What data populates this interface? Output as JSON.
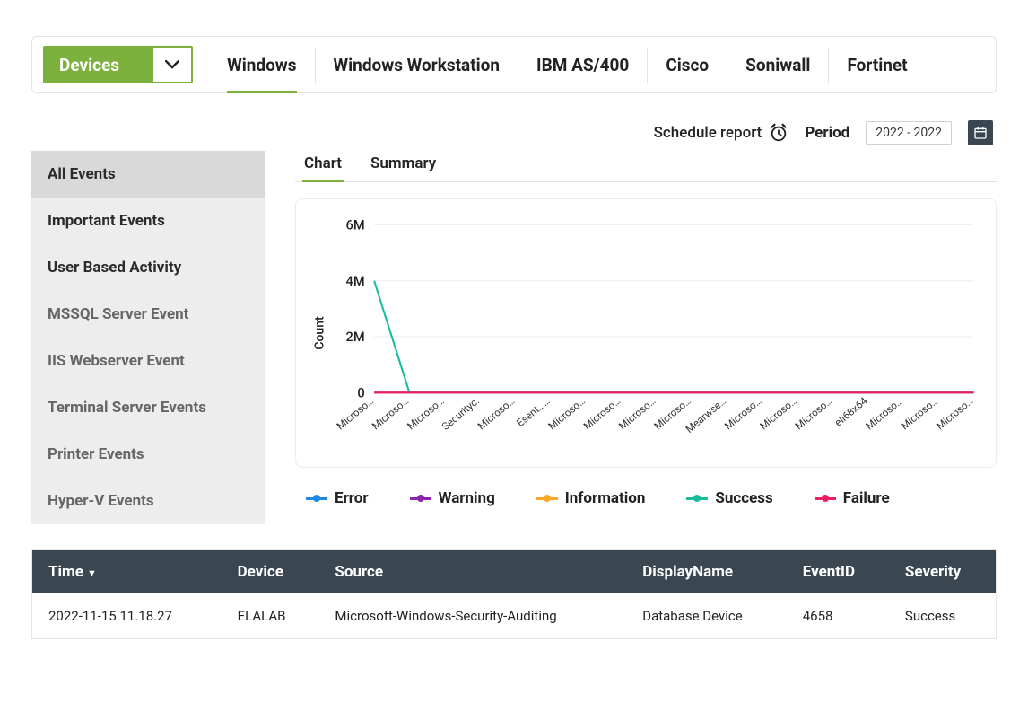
{
  "topnav": {
    "dropdown_label": "Devices",
    "items": [
      "Windows",
      "Windows Workstation",
      "IBM AS/400",
      "Cisco",
      "Soniwall",
      "Fortinet"
    ],
    "active_index": 0
  },
  "controls": {
    "schedule_label": "Schedule report",
    "period_label": "Period",
    "period_value": "2022 - 2022"
  },
  "sidebar": {
    "items": [
      {
        "label": "All Events",
        "active": true,
        "sub": false
      },
      {
        "label": "Important Events",
        "active": false,
        "sub": false
      },
      {
        "label": "User Based Activity",
        "active": false,
        "sub": false
      },
      {
        "label": "MSSQL Server Event",
        "active": false,
        "sub": true
      },
      {
        "label": "IIS Webserver Event",
        "active": false,
        "sub": true
      },
      {
        "label": "Terminal Server Events",
        "active": false,
        "sub": true
      },
      {
        "label": "Printer Events",
        "active": false,
        "sub": true
      },
      {
        "label": "Hyper-V Events",
        "active": false,
        "sub": true
      }
    ]
  },
  "chart": {
    "tabs": [
      "Chart",
      "Summary"
    ],
    "active_tab": 0,
    "type": "line",
    "y_label": "Count",
    "y_ticks": [
      0,
      2000000,
      4000000,
      6000000
    ],
    "y_tick_labels": [
      "0",
      "2M",
      "4M",
      "6M"
    ],
    "ylim": [
      0,
      6000000
    ],
    "categories": [
      "Microso…",
      "Microso…",
      "Microso…",
      "Securityc.",
      "Microso…",
      "Esent……",
      "Microso…",
      "Microso…",
      "Microso…",
      "Microso…",
      "Mearwse…",
      "Microso…",
      "Microso…",
      "Microso…",
      "eli68x64",
      "Microso…",
      "Microso…",
      "Microso…"
    ],
    "series": [
      {
        "name": "Error",
        "color": "#1e88e5",
        "values": [
          0,
          0,
          0,
          0,
          0,
          0,
          0,
          0,
          0,
          0,
          0,
          0,
          0,
          0,
          0,
          0,
          0,
          0
        ]
      },
      {
        "name": "Warning",
        "color": "#8e24aa",
        "values": [
          0,
          0,
          0,
          0,
          0,
          0,
          0,
          0,
          0,
          0,
          0,
          0,
          0,
          0,
          0,
          0,
          0,
          0
        ]
      },
      {
        "name": "Information",
        "color": "#f9a825",
        "values": [
          0,
          0,
          0,
          0,
          0,
          0,
          0,
          0,
          0,
          0,
          0,
          0,
          0,
          0,
          0,
          0,
          0,
          0
        ]
      },
      {
        "name": "Success",
        "color": "#1abc9c",
        "values": [
          4000000,
          0,
          0,
          0,
          0,
          0,
          0,
          0,
          0,
          0,
          0,
          0,
          0,
          0,
          0,
          0,
          0,
          0
        ]
      },
      {
        "name": "Failure",
        "color": "#e91e63",
        "values": [
          0,
          0,
          0,
          0,
          0,
          0,
          0,
          0,
          0,
          0,
          0,
          0,
          0,
          0,
          0,
          0,
          0,
          0
        ]
      }
    ],
    "grid_color": "#eeeeee",
    "background_color": "#ffffff",
    "line_width": 2,
    "legend_labels": [
      "Error",
      "Warning",
      "Information",
      "Success",
      "Failure"
    ]
  },
  "table": {
    "columns": [
      "Time",
      "Device",
      "Source",
      "DisplayName",
      "EventID",
      "Severity"
    ],
    "sort_col": 0,
    "sort_dir": "desc",
    "rows": [
      [
        "2022-11-15 11.18.27",
        "ELALAB",
        "Microsoft-Windows-Security-Auditing",
        "Database Device",
        "4658",
        "Success"
      ]
    ],
    "header_bg": "#3a4650",
    "header_fg": "#ffffff"
  }
}
